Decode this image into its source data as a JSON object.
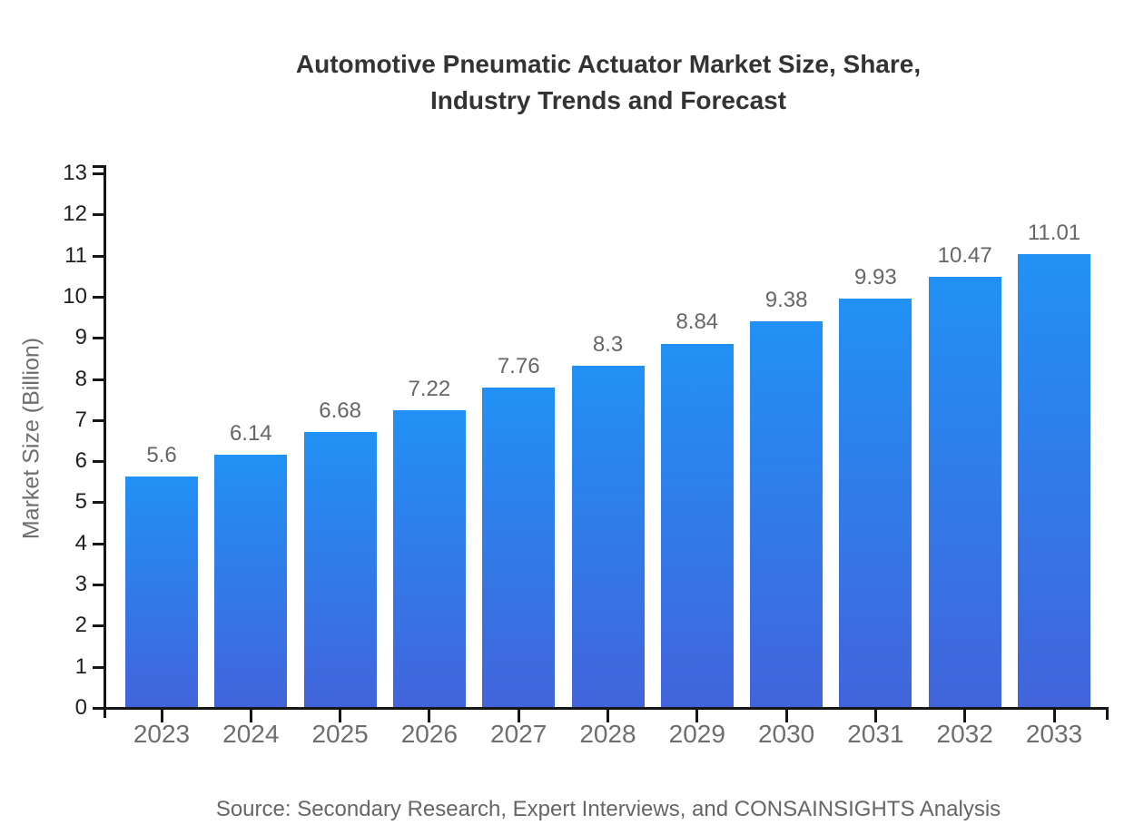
{
  "title_lines": [
    "Automotive Pneumatic Actuator Market Size, Share,",
    "Industry Trends and Forecast"
  ],
  "source": "Source: Secondary Research, Expert Interviews, and CONSAINSIGHTS Analysis",
  "chart_data": {
    "type": "bar",
    "title": "Automotive Pneumatic Actuator Market Size, Share, Industry Trends and Forecast",
    "categories": [
      "2023",
      "2024",
      "2025",
      "2026",
      "2027",
      "2028",
      "2029",
      "2030",
      "2031",
      "2032",
      "2033"
    ],
    "values": [
      5.6,
      6.14,
      6.68,
      7.22,
      7.76,
      8.3,
      8.84,
      9.38,
      9.93,
      10.47,
      11.01
    ],
    "value_labels": [
      "5.6",
      "6.14",
      "6.68",
      "7.22",
      "7.76",
      "8.3",
      "8.84",
      "9.38",
      "9.93",
      "10.47",
      "11.01"
    ],
    "xlabel": "",
    "ylabel": "Market Size (Billion)",
    "ylim": [
      0,
      13
    ],
    "ytick_step": 1,
    "grid": false,
    "legend": "none",
    "colors": {
      "bar_gradient_top": "#2191F5",
      "bar_gradient_bottom": "#4264DB",
      "axis": "#161616",
      "y_tick_label": "#1F1F1F",
      "x_tick_label": "#6E6E6E",
      "value_label": "#666666",
      "title": "#333333",
      "source": "#666666",
      "background": "#FFFFFF"
    }
  }
}
